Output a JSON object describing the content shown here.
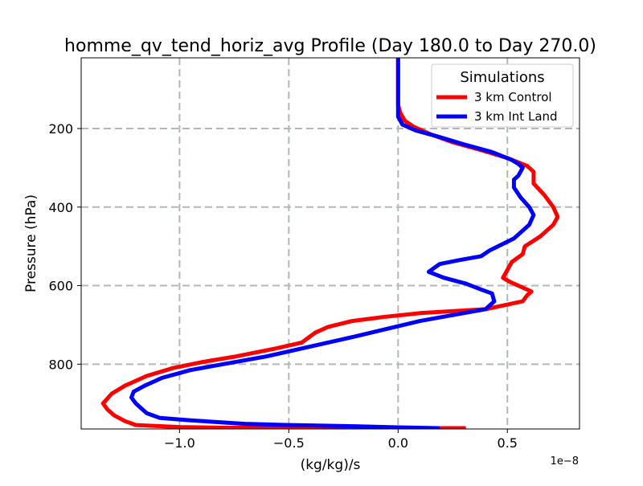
{
  "chart_data": {
    "type": "line",
    "title": "homme_qv_tend_horiz_avg Profile (Day 180.0 to Day 270.0)",
    "xlabel": "(kg/kg)/s",
    "ylabel": "Pressure (hPa)",
    "x_offset_label": "1e−8",
    "xlim": [
      -1.45,
      0.83
    ],
    "ylim": [
      965,
      20
    ],
    "y_inverted": true,
    "x_scale_factor": 1e-08,
    "grid": true,
    "grid_style": "dashed",
    "xticks": [
      -1.0,
      -0.5,
      0.0,
      0.5
    ],
    "xtick_labels": [
      "−1.0",
      "−0.5",
      "0.0",
      "0.5"
    ],
    "yticks": [
      200,
      400,
      600,
      800
    ],
    "ytick_labels": [
      "200",
      "400",
      "600",
      "800"
    ],
    "legend": {
      "title": "Simulations",
      "position": "top-right"
    },
    "series": [
      {
        "name": "3 km Control",
        "color": "#ff0000",
        "points": [
          [
            0.0,
            20
          ],
          [
            0.0,
            60
          ],
          [
            0.0,
            100
          ],
          [
            0.0,
            140
          ],
          [
            0.01,
            160
          ],
          [
            0.03,
            180
          ],
          [
            0.07,
            195
          ],
          [
            0.15,
            215
          ],
          [
            0.25,
            235
          ],
          [
            0.38,
            255
          ],
          [
            0.5,
            275
          ],
          [
            0.59,
            295
          ],
          [
            0.62,
            310
          ],
          [
            0.62,
            340
          ],
          [
            0.67,
            370
          ],
          [
            0.71,
            400
          ],
          [
            0.73,
            425
          ],
          [
            0.71,
            445
          ],
          [
            0.65,
            475
          ],
          [
            0.58,
            500
          ],
          [
            0.57,
            520
          ],
          [
            0.52,
            540
          ],
          [
            0.5,
            560
          ],
          [
            0.48,
            580
          ],
          [
            0.51,
            590
          ],
          [
            0.57,
            605
          ],
          [
            0.61,
            615
          ],
          [
            0.59,
            625
          ],
          [
            0.57,
            640
          ],
          [
            0.4,
            660
          ],
          [
            0.1,
            670
          ],
          [
            -0.07,
            680
          ],
          [
            -0.21,
            690
          ],
          [
            -0.32,
            705
          ],
          [
            -0.38,
            720
          ],
          [
            -0.44,
            745
          ],
          [
            -0.56,
            760
          ],
          [
            -0.74,
            780
          ],
          [
            -0.9,
            795
          ],
          [
            -1.03,
            810
          ],
          [
            -1.15,
            830
          ],
          [
            -1.25,
            855
          ],
          [
            -1.31,
            875
          ],
          [
            -1.35,
            900
          ],
          [
            -1.33,
            915
          ],
          [
            -1.3,
            930
          ],
          [
            -1.25,
            945
          ],
          [
            -1.2,
            955
          ],
          [
            -1.0,
            960
          ],
          [
            -0.8,
            962
          ],
          [
            -0.5,
            962
          ],
          [
            -0.2,
            962
          ],
          [
            0.1,
            963
          ],
          [
            0.31,
            963
          ]
        ]
      },
      {
        "name": "3 km Int Land",
        "color": "#0000ff",
        "points": [
          [
            0.0,
            20
          ],
          [
            0.0,
            60
          ],
          [
            0.0,
            100
          ],
          [
            0.0,
            140
          ],
          [
            0.0,
            170
          ],
          [
            0.02,
            190
          ],
          [
            0.08,
            205
          ],
          [
            0.18,
            220
          ],
          [
            0.3,
            240
          ],
          [
            0.43,
            260
          ],
          [
            0.52,
            280
          ],
          [
            0.55,
            290
          ],
          [
            0.57,
            300
          ],
          [
            0.55,
            320
          ],
          [
            0.53,
            330
          ],
          [
            0.53,
            350
          ],
          [
            0.56,
            375
          ],
          [
            0.6,
            400
          ],
          [
            0.62,
            420
          ],
          [
            0.6,
            445
          ],
          [
            0.53,
            480
          ],
          [
            0.42,
            510
          ],
          [
            0.38,
            525
          ],
          [
            0.28,
            535
          ],
          [
            0.19,
            545
          ],
          [
            0.14,
            565
          ],
          [
            0.21,
            580
          ],
          [
            0.31,
            595
          ],
          [
            0.38,
            610
          ],
          [
            0.43,
            620
          ],
          [
            0.44,
            640
          ],
          [
            0.4,
            660
          ],
          [
            0.3,
            670
          ],
          [
            0.1,
            690
          ],
          [
            -0.05,
            710
          ],
          [
            -0.2,
            730
          ],
          [
            -0.4,
            755
          ],
          [
            -0.6,
            780
          ],
          [
            -0.8,
            800
          ],
          [
            -0.95,
            815
          ],
          [
            -1.08,
            835
          ],
          [
            -1.16,
            855
          ],
          [
            -1.21,
            870
          ],
          [
            -1.22,
            885
          ],
          [
            -1.2,
            900
          ],
          [
            -1.18,
            910
          ],
          [
            -1.15,
            925
          ],
          [
            -1.09,
            937
          ],
          [
            -0.95,
            943
          ],
          [
            -0.81,
            948
          ],
          [
            -0.7,
            952
          ],
          [
            -0.5,
            955
          ],
          [
            -0.2,
            958
          ],
          [
            0.0,
            961
          ],
          [
            0.19,
            963
          ]
        ]
      }
    ]
  }
}
